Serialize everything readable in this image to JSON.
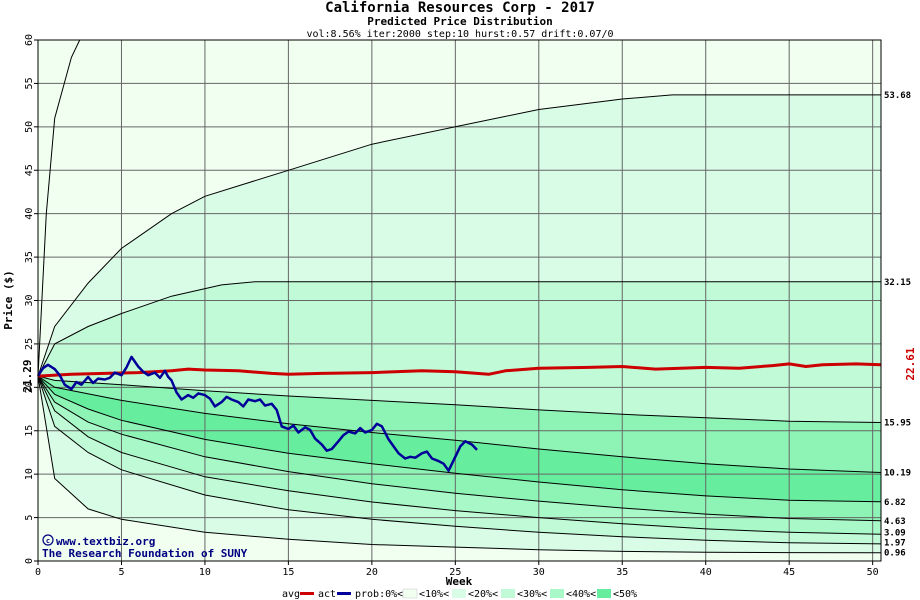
{
  "chart_data": {
    "type": "area",
    "title": "California Resources Corp - 2017",
    "subtitle": "Predicted Price Distribution",
    "params": "vol:8.56% iter:2000 step:10 hurst:0.57 drift:0.07/0",
    "xlabel": "Week",
    "ylabel": "Price ($)",
    "xlim": [
      0,
      50.5
    ],
    "ylim": [
      0,
      60
    ],
    "xticks": [
      0,
      5,
      10,
      15,
      20,
      25,
      30,
      35,
      40,
      45,
      50
    ],
    "yticks": [
      0,
      5,
      10,
      15,
      20,
      25,
      30,
      35,
      40,
      45,
      50,
      55,
      60
    ],
    "grid": true,
    "start_price": "21.29",
    "avg_end_label": "22.61",
    "legend": [
      "avg",
      "act",
      "prob:0%<",
      "<10%<",
      "<20%<",
      "<30%<",
      "<40%<",
      "<50%"
    ],
    "credit": [
      "www.textbiz.org",
      "The Research Foundation of SUNY"
    ],
    "colors": {
      "outer": "#f0fff0",
      "band10": "#d9fce6",
      "band20": "#c1fad6",
      "band30": "#a9f8c8",
      "band40": "#8ef4b6",
      "band50": "#66ee9e",
      "grid": "#666666",
      "avg": "#cc0000",
      "actual": "#000099"
    },
    "percentile_curves": [
      {
        "end_label": "53.68",
        "points": [
          [
            0,
            21.29
          ],
          [
            1,
            27
          ],
          [
            3,
            32
          ],
          [
            5,
            36
          ],
          [
            8,
            40
          ],
          [
            10,
            42
          ],
          [
            15,
            45
          ],
          [
            20,
            48
          ],
          [
            25,
            50
          ],
          [
            30,
            52
          ],
          [
            35,
            53.2
          ],
          [
            38,
            53.68
          ],
          [
            50.5,
            53.68
          ]
        ]
      },
      {
        "end_label": "32.15",
        "points": [
          [
            0,
            21.29
          ],
          [
            1,
            25
          ],
          [
            3,
            27
          ],
          [
            5,
            28.5
          ],
          [
            8,
            30.5
          ],
          [
            11,
            31.8
          ],
          [
            13,
            32.15
          ],
          [
            50.5,
            32.15
          ]
        ]
      },
      {
        "end_label": "15.95",
        "points": [
          [
            0,
            21.29
          ],
          [
            1,
            20.8
          ],
          [
            5,
            20.3
          ],
          [
            10,
            19.6
          ],
          [
            15,
            19
          ],
          [
            20,
            18.5
          ],
          [
            25,
            18
          ],
          [
            30,
            17.4
          ],
          [
            35,
            16.9
          ],
          [
            40,
            16.5
          ],
          [
            45,
            16.1
          ],
          [
            50.5,
            15.95
          ]
        ]
      },
      {
        "end_label": "10.19",
        "points": [
          [
            0,
            21.29
          ],
          [
            1,
            20
          ],
          [
            5,
            18.5
          ],
          [
            10,
            17
          ],
          [
            15,
            15.8
          ],
          [
            20,
            14.8
          ],
          [
            25,
            13.9
          ],
          [
            30,
            12.9
          ],
          [
            35,
            12
          ],
          [
            40,
            11.2
          ],
          [
            45,
            10.6
          ],
          [
            50.5,
            10.19
          ]
        ]
      },
      {
        "end_label": "6.82",
        "points": [
          [
            0,
            21.29
          ],
          [
            1,
            19.2
          ],
          [
            3,
            17.5
          ],
          [
            5,
            16.2
          ],
          [
            10,
            14
          ],
          [
            15,
            12.4
          ],
          [
            20,
            11.2
          ],
          [
            25,
            10.1
          ],
          [
            30,
            9.1
          ],
          [
            35,
            8.2
          ],
          [
            40,
            7.5
          ],
          [
            45,
            7
          ],
          [
            50.5,
            6.82
          ]
        ]
      },
      {
        "end_label": "4.63",
        "points": [
          [
            0,
            21.29
          ],
          [
            1,
            18.3
          ],
          [
            3,
            16
          ],
          [
            5,
            14.6
          ],
          [
            10,
            12
          ],
          [
            15,
            10.3
          ],
          [
            20,
            8.9
          ],
          [
            25,
            7.8
          ],
          [
            30,
            6.9
          ],
          [
            35,
            6.1
          ],
          [
            40,
            5.4
          ],
          [
            45,
            4.9
          ],
          [
            50.5,
            4.63
          ]
        ]
      },
      {
        "end_label": "3.09",
        "points": [
          [
            0,
            21.29
          ],
          [
            1,
            17.3
          ],
          [
            3,
            14.3
          ],
          [
            5,
            12.5
          ],
          [
            10,
            9.7
          ],
          [
            15,
            8.1
          ],
          [
            20,
            6.8
          ],
          [
            25,
            5.8
          ],
          [
            30,
            5
          ],
          [
            35,
            4.3
          ],
          [
            40,
            3.7
          ],
          [
            45,
            3.3
          ],
          [
            50.5,
            3.09
          ]
        ]
      },
      {
        "end_label": "1.97",
        "points": [
          [
            0,
            21.29
          ],
          [
            1,
            15.5
          ],
          [
            3,
            12.5
          ],
          [
            5,
            10.5
          ],
          [
            10,
            7.6
          ],
          [
            15,
            5.9
          ],
          [
            20,
            4.8
          ],
          [
            25,
            4
          ],
          [
            30,
            3.3
          ],
          [
            35,
            2.8
          ],
          [
            40,
            2.4
          ],
          [
            45,
            2.1
          ],
          [
            50.5,
            1.97
          ]
        ]
      },
      {
        "end_label": "0.96",
        "points": [
          [
            0,
            21.29
          ],
          [
            1,
            9.5
          ],
          [
            3,
            6
          ],
          [
            5,
            4.8
          ],
          [
            10,
            3.3
          ],
          [
            15,
            2.5
          ],
          [
            20,
            1.9
          ],
          [
            25,
            1.6
          ],
          [
            30,
            1.3
          ],
          [
            35,
            1.1
          ],
          [
            40,
            1
          ],
          [
            45,
            0.97
          ],
          [
            50.5,
            0.96
          ]
        ]
      }
    ],
    "outer_max_curve": [
      [
        0,
        21.29
      ],
      [
        0.5,
        40
      ],
      [
        1,
        51
      ],
      [
        2,
        58
      ],
      [
        2.5,
        60
      ]
    ],
    "avg_series": [
      [
        0,
        21.29
      ],
      [
        2,
        21.5
      ],
      [
        4,
        21.6
      ],
      [
        6,
        21.7
      ],
      [
        8,
        21.9
      ],
      [
        9,
        22.1
      ],
      [
        10,
        22
      ],
      [
        12,
        21.9
      ],
      [
        14,
        21.6
      ],
      [
        15,
        21.5
      ],
      [
        17,
        21.6
      ],
      [
        20,
        21.7
      ],
      [
        23,
        21.9
      ],
      [
        25,
        21.8
      ],
      [
        27,
        21.5
      ],
      [
        28,
        21.9
      ],
      [
        30,
        22.2
      ],
      [
        33,
        22.3
      ],
      [
        35,
        22.4
      ],
      [
        37,
        22.1
      ],
      [
        40,
        22.3
      ],
      [
        42,
        22.2
      ],
      [
        44,
        22.5
      ],
      [
        45,
        22.7
      ],
      [
        46,
        22.4
      ],
      [
        47,
        22.6
      ],
      [
        49,
        22.7
      ],
      [
        50.5,
        22.61
      ]
    ],
    "actual_series": [
      [
        0,
        21.3
      ],
      [
        0.3,
        22.2
      ],
      [
        0.6,
        22.6
      ],
      [
        1,
        22.1
      ],
      [
        1.3,
        21.4
      ],
      [
        1.6,
        20.3
      ],
      [
        2,
        19.8
      ],
      [
        2.3,
        20.6
      ],
      [
        2.6,
        20.3
      ],
      [
        3,
        21.2
      ],
      [
        3.3,
        20.5
      ],
      [
        3.6,
        21
      ],
      [
        4,
        20.9
      ],
      [
        4.3,
        21.1
      ],
      [
        4.6,
        21.7
      ],
      [
        5,
        21.4
      ],
      [
        5.3,
        22.3
      ],
      [
        5.6,
        23.5
      ],
      [
        6,
        22.4
      ],
      [
        6.3,
        21.8
      ],
      [
        6.6,
        21.4
      ],
      [
        7,
        21.7
      ],
      [
        7.3,
        21.1
      ],
      [
        7.6,
        21.9
      ],
      [
        7.8,
        21.2
      ],
      [
        8,
        20.8
      ],
      [
        8.3,
        19.4
      ],
      [
        8.6,
        18.6
      ],
      [
        9,
        19.1
      ],
      [
        9.3,
        18.8
      ],
      [
        9.6,
        19.3
      ],
      [
        10,
        19.1
      ],
      [
        10.3,
        18.7
      ],
      [
        10.6,
        17.8
      ],
      [
        11,
        18.3
      ],
      [
        11.3,
        18.9
      ],
      [
        11.6,
        18.6
      ],
      [
        12,
        18.3
      ],
      [
        12.3,
        17.8
      ],
      [
        12.6,
        18.6
      ],
      [
        13,
        18.4
      ],
      [
        13.3,
        18.6
      ],
      [
        13.6,
        17.9
      ],
      [
        14,
        18.1
      ],
      [
        14.3,
        17.4
      ],
      [
        14.6,
        15.5
      ],
      [
        15,
        15.2
      ],
      [
        15.3,
        15.6
      ],
      [
        15.6,
        14.8
      ],
      [
        16,
        15.4
      ],
      [
        16.3,
        15.1
      ],
      [
        16.6,
        14.1
      ],
      [
        17,
        13.4
      ],
      [
        17.3,
        12.7
      ],
      [
        17.6,
        12.9
      ],
      [
        18,
        13.8
      ],
      [
        18.3,
        14.5
      ],
      [
        18.6,
        14.9
      ],
      [
        19,
        14.7
      ],
      [
        19.3,
        15.3
      ],
      [
        19.6,
        14.8
      ],
      [
        20,
        15.1
      ],
      [
        20.3,
        15.8
      ],
      [
        20.6,
        15.5
      ],
      [
        21,
        14
      ],
      [
        21.3,
        13.2
      ],
      [
        21.6,
        12.4
      ],
      [
        22,
        11.8
      ],
      [
        22.3,
        12
      ],
      [
        22.6,
        11.9
      ],
      [
        23,
        12.4
      ],
      [
        23.3,
        12.6
      ],
      [
        23.6,
        11.8
      ],
      [
        24,
        11.5
      ],
      [
        24.3,
        11.2
      ],
      [
        24.6,
        10.4
      ],
      [
        25,
        12
      ],
      [
        25.3,
        13.2
      ],
      [
        25.6,
        13.8
      ],
      [
        26,
        13.4
      ],
      [
        26.3,
        12.8
      ]
    ]
  }
}
